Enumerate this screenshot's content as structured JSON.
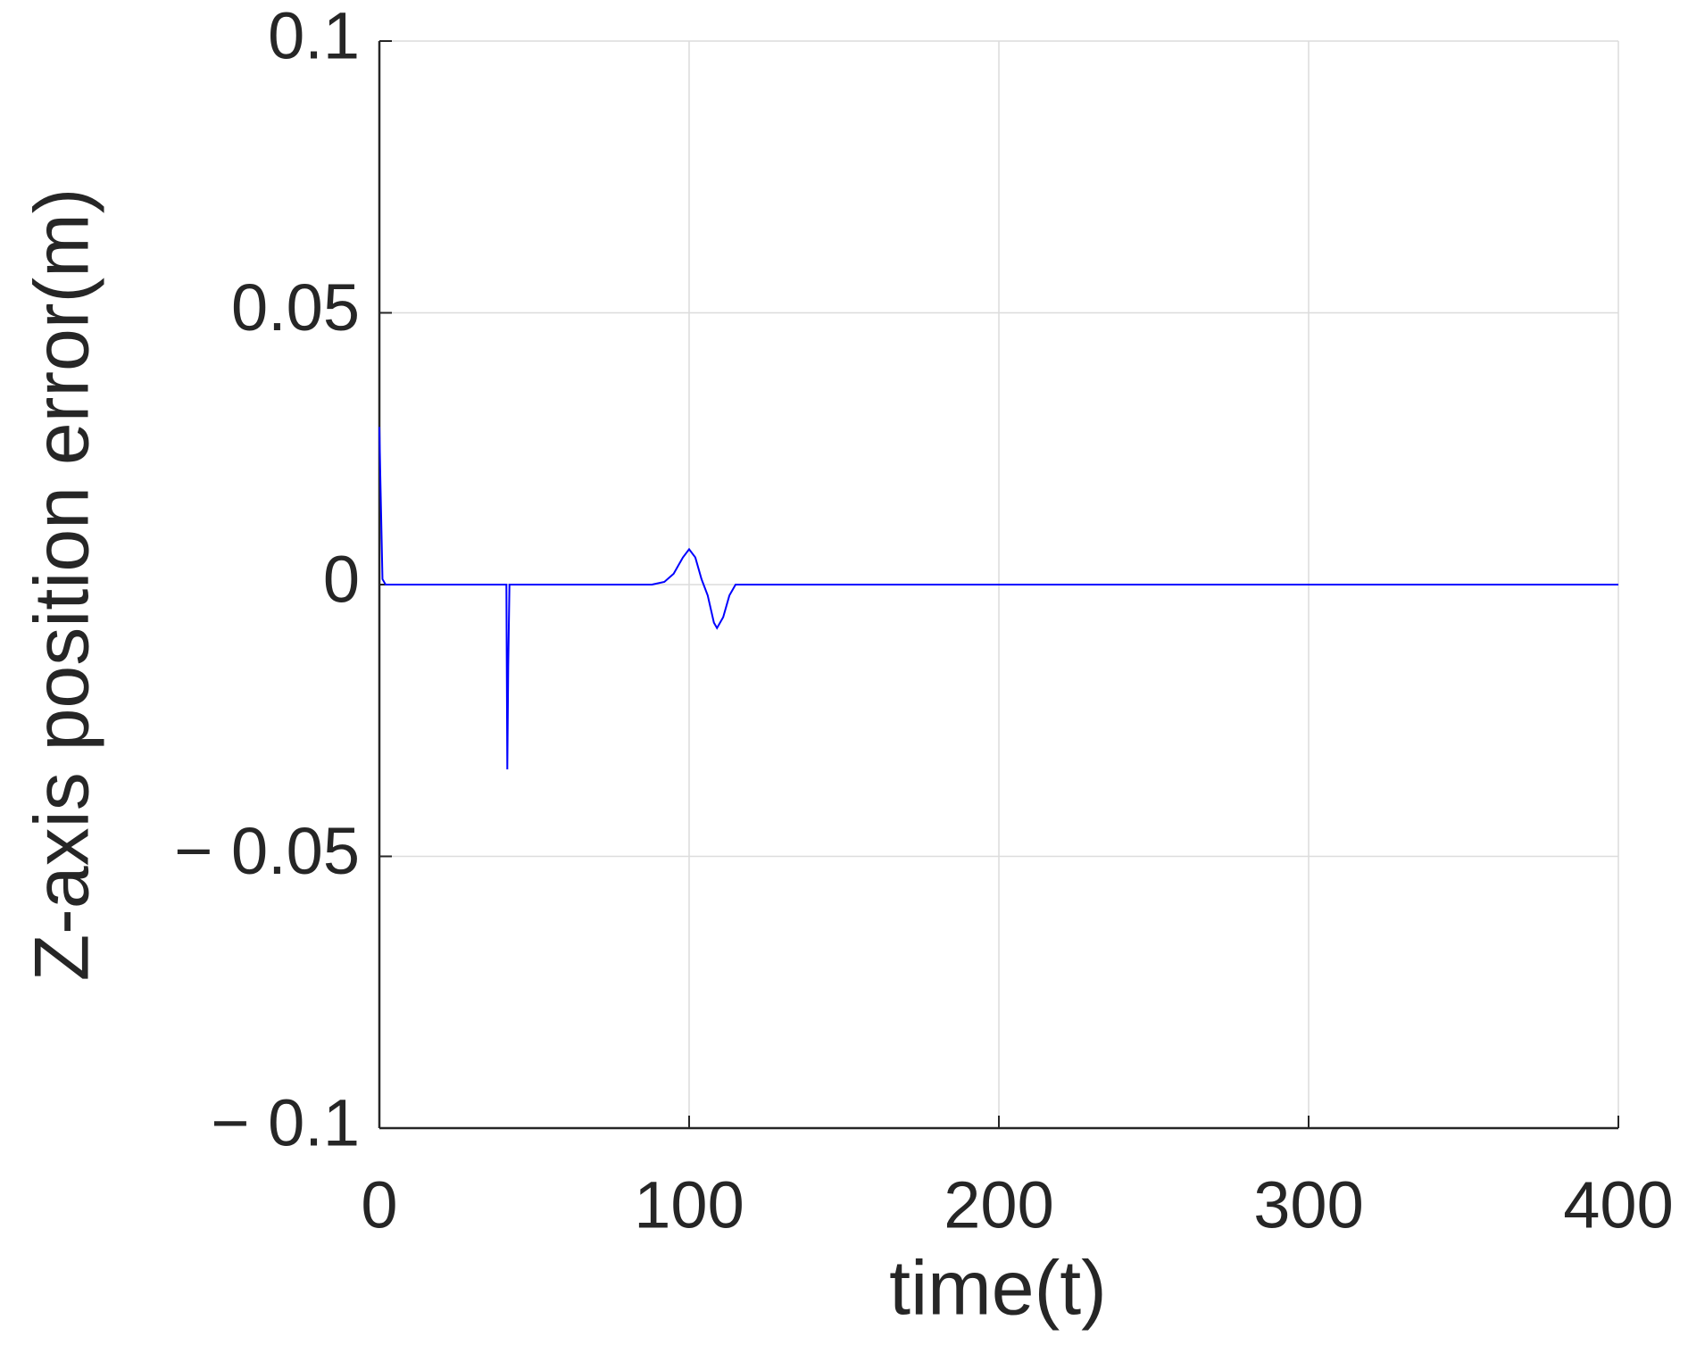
{
  "chart_data": {
    "type": "line",
    "xlabel": "time(t)",
    "ylabel": "Z-axis position error(m)",
    "x": [
      0,
      0.3,
      1,
      2,
      5,
      41,
      41.3,
      41.6,
      42,
      43,
      70,
      88,
      92,
      95,
      98,
      100,
      102,
      104,
      106,
      108,
      109,
      111,
      113,
      115,
      116,
      130,
      400
    ],
    "series": [
      {
        "color": "#0000ff",
        "values": [
          0.029,
          0.02,
          0.001,
          0,
          0,
          0,
          -0.034,
          -0.015,
          0,
          0,
          0,
          0,
          0.0005,
          0.002,
          0.005,
          0.0065,
          0.005,
          0.001,
          -0.002,
          -0.007,
          -0.008,
          -0.006,
          -0.002,
          0,
          0,
          0,
          0
        ]
      }
    ],
    "xlim": [
      0,
      400
    ],
    "xticks": [
      0,
      100,
      200,
      300,
      400
    ],
    "ylim": [
      -0.1,
      0.1
    ],
    "yticks": [
      {
        "value": -0.1,
        "label": "− 0.1"
      },
      {
        "value": -0.05,
        "label": "− 0.05"
      },
      0,
      0.05,
      0.1
    ],
    "grid": true
  }
}
